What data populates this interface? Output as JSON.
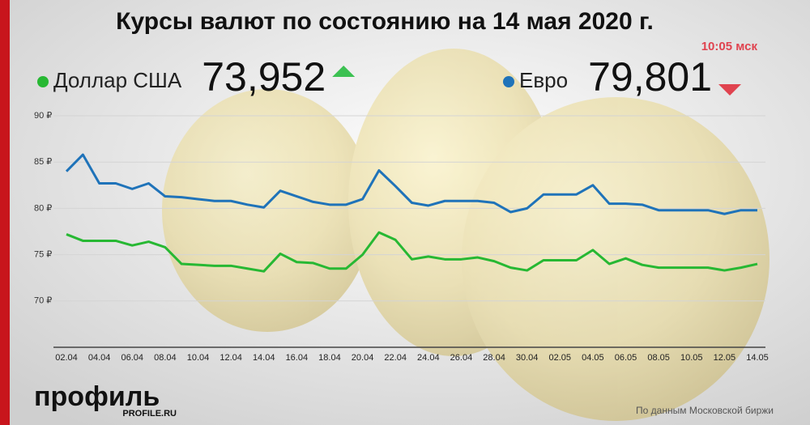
{
  "chart_data": {
    "type": "line",
    "title": "Курсы валют по состоянию на 14 мая 2020 г.",
    "subtitle": "10:05 мск",
    "categories": [
      "02.04",
      null,
      "04.04",
      null,
      "06.04",
      null,
      "08.04",
      null,
      "10.04",
      null,
      "12.04",
      null,
      "14.04",
      null,
      "16.04",
      null,
      "18.04",
      null,
      "20.04",
      null,
      "22.04",
      null,
      "24.04",
      null,
      "26.04",
      null,
      "28.04",
      null,
      "30.04",
      null,
      "02.05",
      null,
      "04.05",
      null,
      "06.05",
      null,
      "08.05",
      null,
      "10.05",
      null,
      "12.05",
      null,
      "14.05"
    ],
    "series": [
      {
        "name": "Доллар США",
        "color": "#27b833",
        "current": {
          "value": 73.952,
          "label": "73,952"
        },
        "trend": "up",
        "trend_color": "#3cc152",
        "values": [
          77.2,
          76.5,
          76.5,
          76.5,
          76.0,
          76.4,
          75.8,
          74.0,
          73.9,
          73.8,
          73.8,
          73.5,
          73.2,
          75.1,
          74.2,
          74.1,
          73.5,
          73.5,
          75.0,
          77.4,
          76.6,
          74.5,
          74.8,
          74.5,
          74.5,
          74.7,
          74.3,
          73.6,
          73.3,
          74.4,
          74.4,
          74.4,
          75.5,
          74.0,
          74.6,
          73.9,
          73.6,
          73.6,
          73.6,
          73.6,
          73.3,
          73.6,
          74.0
        ]
      },
      {
        "name": "Евро",
        "color": "#1f73b9",
        "current": {
          "value": 79.801,
          "label": "79,801"
        },
        "trend": "down",
        "trend_color": "#e0434f",
        "values": [
          84.0,
          85.8,
          82.7,
          82.7,
          82.1,
          82.7,
          81.3,
          81.2,
          81.0,
          80.8,
          80.8,
          80.4,
          80.1,
          81.9,
          81.3,
          80.7,
          80.4,
          80.4,
          81.0,
          84.1,
          82.4,
          80.6,
          80.3,
          80.8,
          80.8,
          80.8,
          80.6,
          79.6,
          80.0,
          81.5,
          81.5,
          81.5,
          82.5,
          80.5,
          80.5,
          80.4,
          79.8,
          79.8,
          79.8,
          79.8,
          79.4,
          79.8,
          79.8
        ]
      }
    ],
    "ylim": [
      65,
      90
    ],
    "yticks": [
      {
        "value": 70,
        "label": "70 ₽"
      },
      {
        "value": 75,
        "label": "75 ₽"
      },
      {
        "value": 80,
        "label": "80 ₽"
      },
      {
        "value": 85,
        "label": "85 ₽"
      },
      {
        "value": 90,
        "label": "90 ₽"
      }
    ],
    "grid": true,
    "source": "По данным Московской биржи"
  },
  "logo": {
    "name": "профиль",
    "site": "PROFILE.RU"
  }
}
